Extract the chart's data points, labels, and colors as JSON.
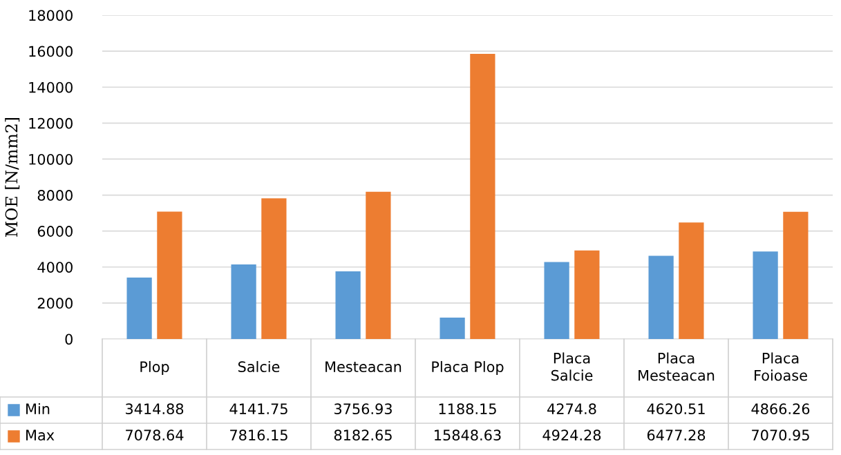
{
  "chart_data": {
    "type": "bar",
    "ylabel": "MOE [N/mm2]",
    "categories": [
      "Plop",
      "Salcie",
      "Mesteacan",
      "Placa Plop",
      "Placa Salcie",
      "Placa Mesteacan",
      "Placa Foioase"
    ],
    "series": [
      {
        "name": "Min",
        "color": "#5b9bd5",
        "values": [
          3414.88,
          4141.75,
          3756.93,
          1188.15,
          4274.8,
          4620.51,
          4866.26
        ]
      },
      {
        "name": "Max",
        "color": "#ed7d31",
        "values": [
          7078.64,
          7816.15,
          8182.65,
          15848.63,
          4924.28,
          6477.28,
          7070.95
        ]
      }
    ],
    "ylim": [
      0,
      18000
    ],
    "yticks": [
      0,
      2000,
      4000,
      6000,
      8000,
      10000,
      12000,
      14000,
      16000,
      18000
    ],
    "grid": "y",
    "legend": "bottom",
    "data_labels": true
  }
}
